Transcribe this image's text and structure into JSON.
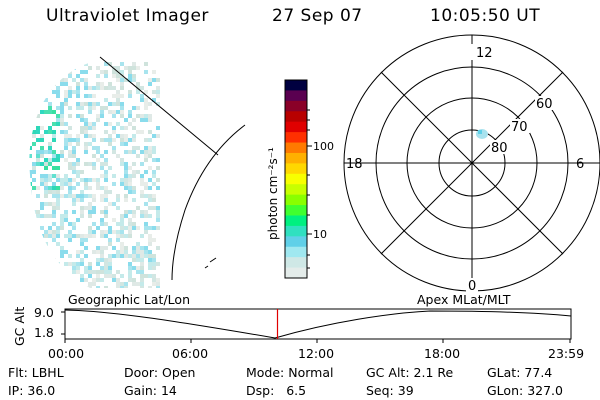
{
  "header": {
    "instrument": "Ultraviolet Imager",
    "date": "27 Sep 07",
    "time": "10:05:50 UT"
  },
  "colorbar": {
    "unit_label": "photon cm⁻²s⁻¹",
    "ticks": [
      "100",
      "10"
    ],
    "colors": [
      "#000040",
      "#5a0050",
      "#8a0028",
      "#b80000",
      "#e00000",
      "#ff3000",
      "#ff7a00",
      "#ffb000",
      "#ffd800",
      "#f8ff00",
      "#c8ff00",
      "#8aff00",
      "#40ff30",
      "#00f080",
      "#30e0c0",
      "#60d0e8",
      "#a0e8f0",
      "#cfe8e6",
      "#e4ecea"
    ]
  },
  "polar_plot": {
    "labels": {
      "top": "12",
      "bottom": "0",
      "left": "18",
      "right": "6"
    },
    "ring_labels": [
      "60",
      "70",
      "80"
    ]
  },
  "altitude_panel": {
    "left_title": "Geographic Lat/Lon",
    "right_title": "Apex MLat/MLT",
    "ylabel": "GC Alt",
    "ytick_top": "9.0",
    "ytick_bottom": "1.8",
    "xticks": [
      "00:00",
      "06:00",
      "12:00",
      "18:00",
      "23:59"
    ],
    "current_time_fraction": 0.42
  },
  "status": {
    "row1": [
      {
        "label": "Flt:",
        "value": "LBHL"
      },
      {
        "label": "Door:",
        "value": "Open"
      },
      {
        "label": "Mode:",
        "value": "Normal"
      },
      {
        "label": "GC Alt:",
        "value": "2.1 Re"
      },
      {
        "label": "GLat:",
        "value": "77.4"
      }
    ],
    "row2": [
      {
        "label": "IP:",
        "value": "36.0"
      },
      {
        "label": "Gain:",
        "value": "14"
      },
      {
        "label": "Dsp:",
        "value": "6.5"
      },
      {
        "label": "Seq:",
        "value": "39"
      },
      {
        "label": "GLon:",
        "value": "327.0"
      }
    ]
  }
}
